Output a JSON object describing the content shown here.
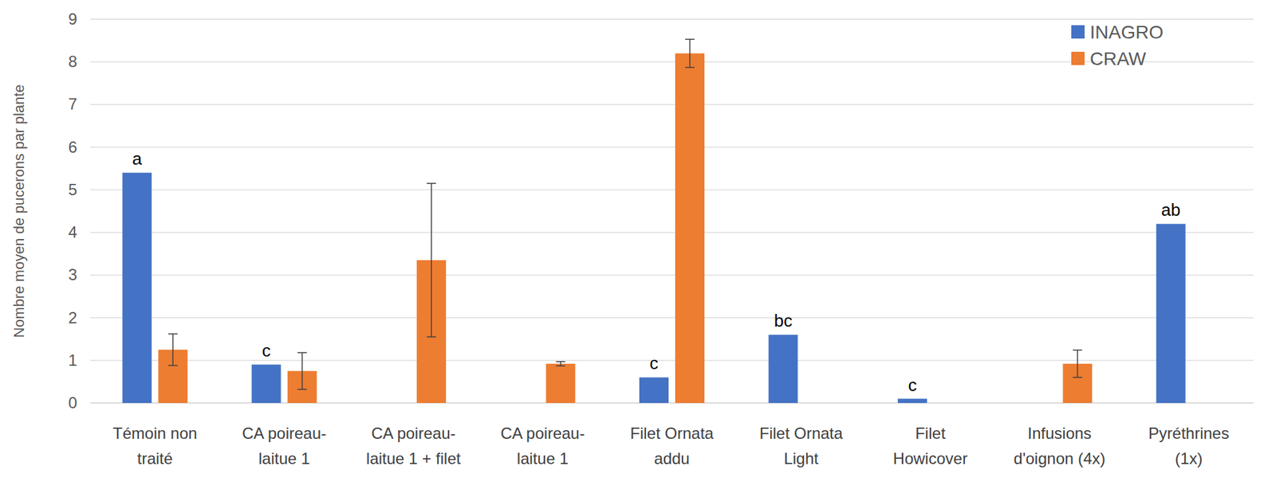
{
  "chart_data": {
    "type": "bar",
    "y_label": "Nombre moyen de pucerons par plante",
    "categories": [
      "Témoin non traité",
      "CA poireau-laitue 1",
      "CA poireau-laitue 1 + filet",
      "CA poireau-laitue 1",
      "Filet Ornata addu",
      "Filet Ornata Light",
      "Filet Howicover",
      "Infusions d'oignon (4x)",
      "Pyréthrines (1x)"
    ],
    "series": [
      {
        "name": "INAGRO",
        "color": "#4472c4",
        "values": [
          5.4,
          0.9,
          null,
          null,
          0.6,
          1.6,
          0.1,
          null,
          4.2
        ],
        "letters": [
          "a",
          "c",
          null,
          null,
          "c",
          "bc",
          "c",
          null,
          "ab"
        ]
      },
      {
        "name": "CRAW",
        "color": "#ed7d31",
        "values": [
          1.25,
          0.75,
          3.35,
          0.92,
          8.2,
          null,
          null,
          0.92,
          null
        ],
        "errors": [
          0.37,
          0.43,
          1.8,
          0.05,
          0.33,
          null,
          null,
          0.32,
          null
        ]
      }
    ],
    "ylim": [
      0,
      9
    ],
    "yticks": [
      0,
      1,
      2,
      3,
      4,
      5,
      6,
      7,
      8,
      9
    ],
    "grid": true,
    "legend": "top-right"
  }
}
